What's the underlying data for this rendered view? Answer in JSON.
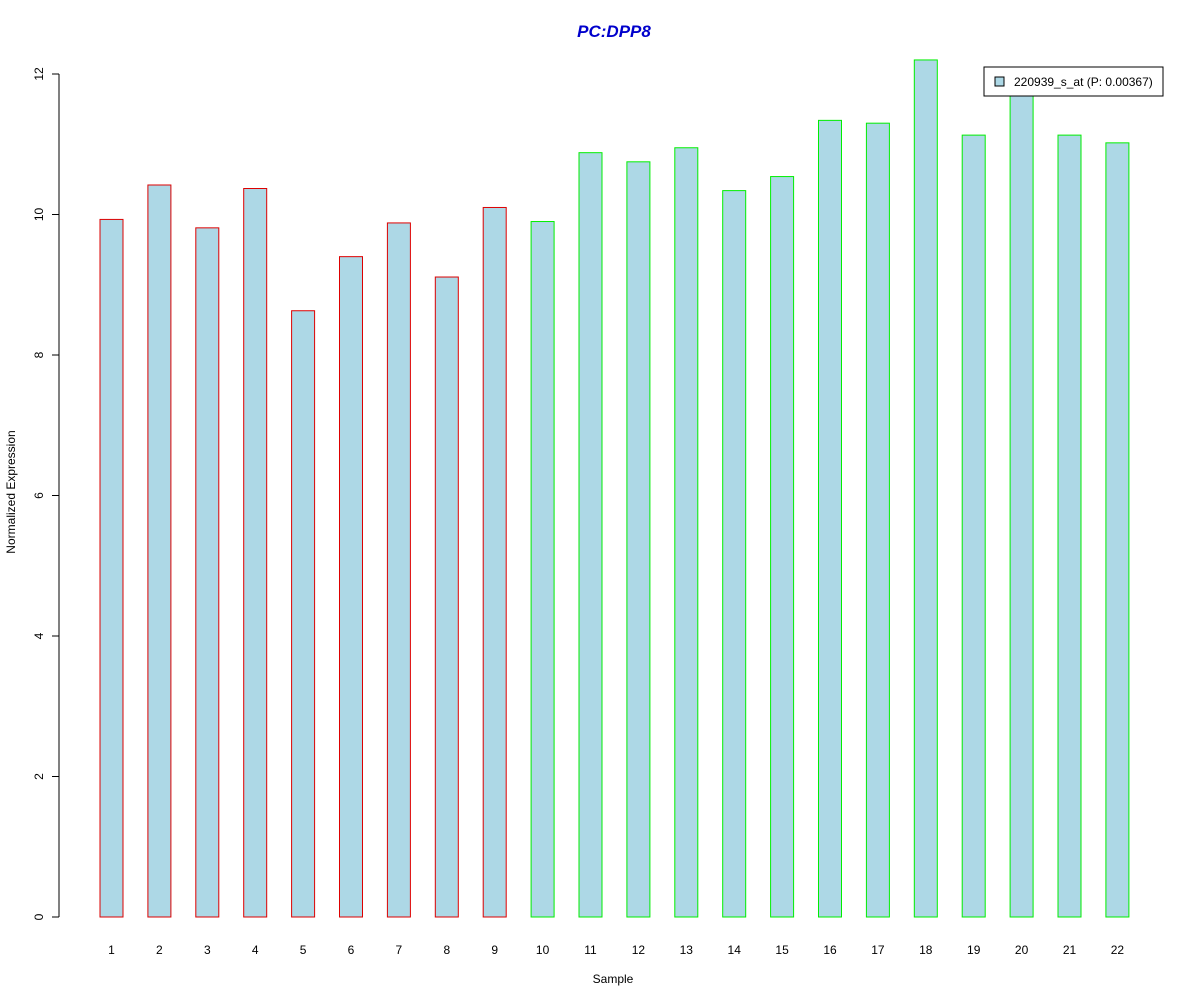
{
  "chart_data": {
    "type": "bar",
    "title": "PC:DPP8",
    "xlabel": "Sample",
    "ylabel": "Normalized Expression",
    "ylim": [
      0,
      12.2
    ],
    "yticks": [
      "0",
      "2",
      "4",
      "6",
      "8",
      "10",
      "12"
    ],
    "categories": [
      "1",
      "2",
      "3",
      "4",
      "5",
      "6",
      "7",
      "8",
      "9",
      "10",
      "11",
      "12",
      "13",
      "14",
      "15",
      "16",
      "17",
      "18",
      "19",
      "20",
      "21",
      "22"
    ],
    "series": [
      {
        "name": "220939_s_at (P: 0.00367)",
        "values": [
          9.93,
          10.42,
          9.81,
          10.37,
          8.63,
          9.4,
          9.88,
          9.11,
          10.1,
          9.9,
          10.88,
          10.75,
          10.95,
          10.34,
          10.54,
          11.34,
          11.3,
          12.2,
          11.13,
          11.78,
          11.13,
          11.02
        ]
      }
    ],
    "group_border_colors": [
      "#dd0000",
      "#dd0000",
      "#dd0000",
      "#dd0000",
      "#dd0000",
      "#dd0000",
      "#dd0000",
      "#dd0000",
      "#dd0000",
      "#00ee00",
      "#00ee00",
      "#00ee00",
      "#00ee00",
      "#00ee00",
      "#00ee00",
      "#00ee00",
      "#00ee00",
      "#00ee00",
      "#00ee00",
      "#00ee00",
      "#00ee00",
      "#00ee00"
    ],
    "bar_fill": "#add8e6",
    "title_color": "#0000cc",
    "grid": false,
    "legend_position": "top-right"
  }
}
